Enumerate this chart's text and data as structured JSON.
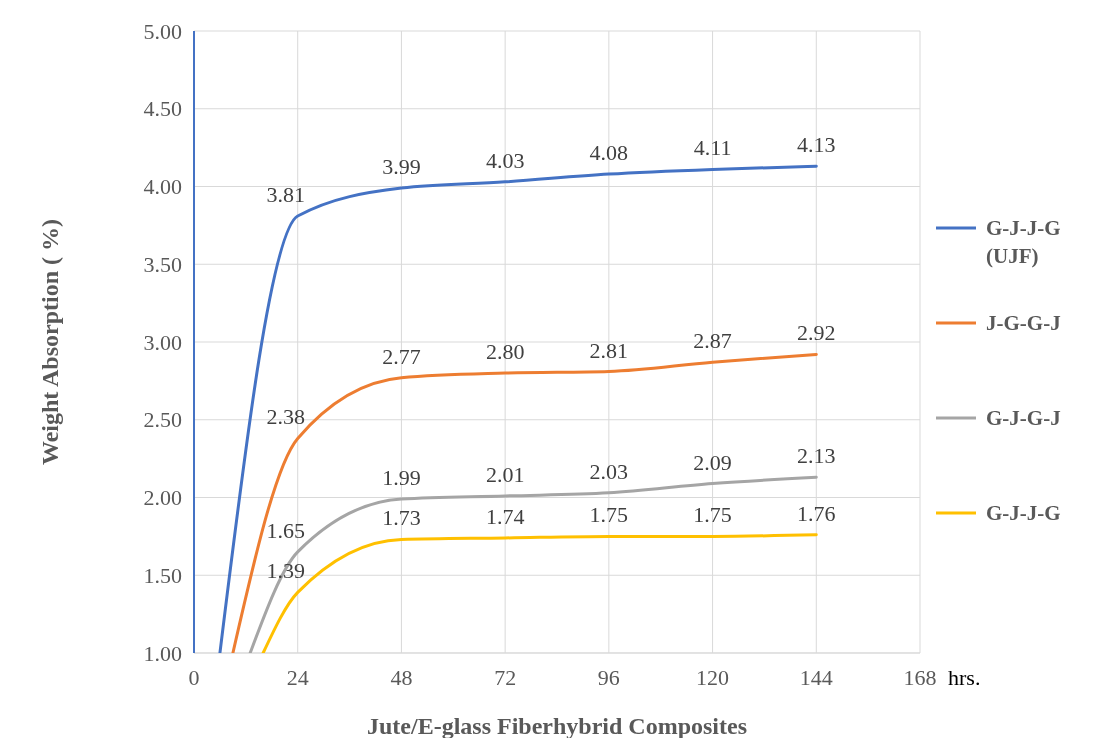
{
  "chart_data": {
    "type": "line",
    "xlabel": "Jute/E-glass Fiberhybrid Composites",
    "ylabel": "Weight Absorption ( %)",
    "annotations": [
      "hrs."
    ],
    "xlim": [
      0,
      168
    ],
    "xticks": [
      0,
      24,
      48,
      72,
      96,
      120,
      144,
      168
    ],
    "ylim": [
      1,
      5
    ],
    "yticks": [
      {
        "value": 1,
        "label": "1.00"
      },
      {
        "value": 1.5,
        "label": "1.50"
      },
      {
        "value": 2,
        "label": "2.00"
      },
      {
        "value": 2.5,
        "label": "2.50"
      },
      {
        "value": 3,
        "label": "3.00"
      },
      {
        "value": 3.5,
        "label": "3.50"
      },
      {
        "value": 4,
        "label": "4.00"
      },
      {
        "value": 4.5,
        "label": "4.50"
      },
      {
        "value": 5,
        "label": "5.00"
      }
    ],
    "grid": true,
    "legend": "right",
    "marker": "none",
    "line_style": "solid",
    "series": [
      {
        "name": "G-J-J-G (UJF)",
        "color": "#4472c4",
        "x": [
          6,
          24,
          48,
          72,
          96,
          120,
          144
        ],
        "values": [
          1,
          3.81,
          3.99,
          4.03,
          4.08,
          4.11,
          4.13
        ],
        "value_labels": [
          null,
          "3.81",
          "3.99",
          "4.03",
          "4.08",
          "4.11",
          "4.13"
        ]
      },
      {
        "name": "J-G-G-J",
        "color": "#ed7d31",
        "x": [
          9,
          24,
          48,
          72,
          96,
          120,
          144
        ],
        "values": [
          1,
          2.38,
          2.77,
          2.8,
          2.81,
          2.87,
          2.92
        ],
        "value_labels": [
          null,
          "2.38",
          "2.77",
          "2.80",
          "2.81",
          "2.87",
          "2.92"
        ]
      },
      {
        "name": "G-J-G-J",
        "color": "#a5a5a5",
        "x": [
          13,
          24,
          48,
          72,
          96,
          120,
          144
        ],
        "values": [
          1,
          1.65,
          1.99,
          2.01,
          2.03,
          2.09,
          2.13
        ],
        "value_labels": [
          null,
          "1.65",
          "1.99",
          "2.01",
          "2.03",
          "2.09",
          "2.13"
        ]
      },
      {
        "name": "G-J-J-G",
        "color": "#ffc000",
        "x": [
          16,
          24,
          48,
          72,
          96,
          120,
          144
        ],
        "values": [
          1,
          1.39,
          1.73,
          1.74,
          1.75,
          1.75,
          1.76
        ],
        "value_labels": [
          null,
          "1.39",
          "1.73",
          "1.74",
          "1.75",
          "1.75",
          "1.76"
        ]
      }
    ]
  }
}
